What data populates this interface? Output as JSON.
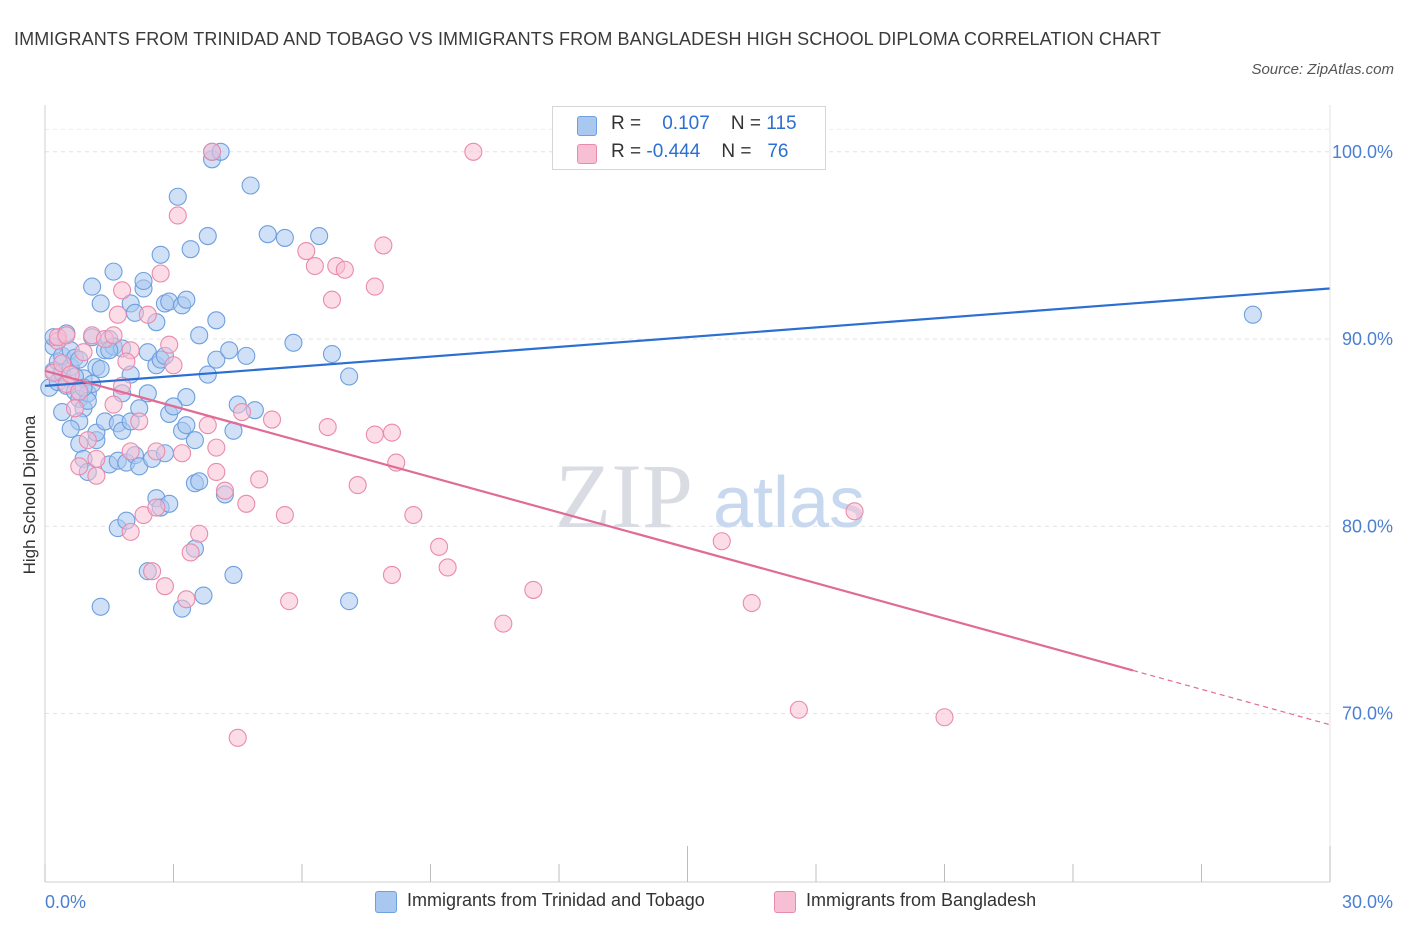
{
  "title": "IMMIGRANTS FROM TRINIDAD AND TOBAGO VS IMMIGRANTS FROM BANGLADESH HIGH SCHOOL DIPLOMA CORRELATION CHART",
  "source": "Source: ZipAtlas.com",
  "watermark": {
    "zip": "ZIP",
    "atlas": "atlas"
  },
  "stats_legend": {
    "rows": [
      {
        "r_label": "R =",
        "r_value": "0.107",
        "n_label": "N =",
        "n_value": "115",
        "color": "#a9c8f0",
        "border": "#6e9fdf"
      },
      {
        "r_label": "R =",
        "r_value": "-0.444",
        "n_label": "N =",
        "n_value": "76",
        "color": "#f7bfd3",
        "border": "#e98bab"
      }
    ]
  },
  "chart_data": {
    "type": "scatter",
    "title": "IMMIGRANTS FROM TRINIDAD AND TOBAGO VS IMMIGRANTS FROM BANGLADESH HIGH SCHOOL DIPLOMA CORRELATION CHART",
    "xlabel": "",
    "ylabel": "High School Diploma",
    "xlim": [
      0,
      30
    ],
    "ylim": [
      61,
      102.5
    ],
    "x_tick_labels": [
      "0.0%",
      "30.0%"
    ],
    "y_ticks": [
      100,
      90,
      80,
      70
    ],
    "y_tick_labels": [
      "100.0%",
      "90.0%",
      "80.0%",
      "70.0%"
    ],
    "grid": true,
    "legend_position": "bottom",
    "series": [
      {
        "name": "Immigrants from Trinidad and Tobago",
        "color": "#6e9fdf",
        "fill": "#a9c8f0",
        "trend_color": "#2b6fd3",
        "trend": {
          "x0": 0,
          "y0": 87.5,
          "x1": 29.99,
          "y1": 92.7
        },
        "points": [
          [
            0.1,
            87.4
          ],
          [
            0.2,
            88.3
          ],
          [
            0.2,
            89.6
          ],
          [
            0.3,
            88.8
          ],
          [
            0.3,
            87.7
          ],
          [
            0.4,
            89.1
          ],
          [
            0.4,
            88.2
          ],
          [
            0.5,
            87.5
          ],
          [
            0.6,
            89.4
          ],
          [
            0.6,
            88.5
          ],
          [
            0.7,
            87.2
          ],
          [
            0.7,
            89.0
          ],
          [
            0.8,
            86.8
          ],
          [
            0.8,
            88.9
          ],
          [
            0.9,
            86.3
          ],
          [
            0.9,
            87.9
          ],
          [
            0.8,
            85.6
          ],
          [
            0.8,
            84.4
          ],
          [
            0.9,
            83.6
          ],
          [
            1.0,
            87.1
          ],
          [
            1.0,
            86.7
          ],
          [
            1.1,
            92.8
          ],
          [
            1.1,
            90.1
          ],
          [
            1.1,
            87.6
          ],
          [
            1.2,
            84.6
          ],
          [
            1.2,
            85.0
          ],
          [
            1.2,
            88.5
          ],
          [
            1.3,
            91.9
          ],
          [
            1.3,
            88.4
          ],
          [
            1.4,
            89.4
          ],
          [
            1.4,
            85.6
          ],
          [
            1.5,
            83.3
          ],
          [
            1.5,
            90.0
          ],
          [
            1.6,
            93.6
          ],
          [
            1.6,
            89.6
          ],
          [
            1.7,
            85.5
          ],
          [
            1.7,
            83.5
          ],
          [
            1.7,
            79.9
          ],
          [
            1.8,
            87.1
          ],
          [
            1.8,
            85.1
          ],
          [
            1.8,
            89.5
          ],
          [
            1.9,
            80.3
          ],
          [
            1.9,
            83.4
          ],
          [
            2.0,
            91.9
          ],
          [
            2.0,
            85.6
          ],
          [
            2.1,
            91.4
          ],
          [
            2.1,
            83.8
          ],
          [
            2.2,
            83.2
          ],
          [
            2.3,
            92.7
          ],
          [
            2.3,
            93.1
          ],
          [
            2.4,
            89.3
          ],
          [
            2.4,
            87.1
          ],
          [
            2.4,
            77.6
          ],
          [
            2.5,
            83.6
          ],
          [
            2.6,
            90.9
          ],
          [
            2.6,
            88.6
          ],
          [
            2.6,
            81.5
          ],
          [
            2.7,
            94.5
          ],
          [
            2.7,
            88.9
          ],
          [
            2.7,
            81.0
          ],
          [
            2.8,
            91.9
          ],
          [
            2.8,
            89.1
          ],
          [
            2.8,
            83.9
          ],
          [
            2.9,
            86.0
          ],
          [
            2.9,
            92.0
          ],
          [
            3.1,
            97.6
          ],
          [
            3.2,
            85.1
          ],
          [
            3.2,
            75.6
          ],
          [
            3.2,
            91.8
          ],
          [
            3.3,
            92.1
          ],
          [
            3.3,
            85.4
          ],
          [
            3.3,
            86.9
          ],
          [
            3.4,
            94.8
          ],
          [
            3.5,
            84.6
          ],
          [
            3.5,
            78.8
          ],
          [
            3.5,
            82.3
          ],
          [
            3.6,
            90.2
          ],
          [
            3.7,
            76.3
          ],
          [
            3.8,
            88.1
          ],
          [
            3.8,
            95.5
          ],
          [
            3.9,
            99.6
          ],
          [
            3.9,
            100.0
          ],
          [
            4.0,
            88.9
          ],
          [
            4.0,
            91.0
          ],
          [
            4.1,
            100.0
          ],
          [
            4.2,
            81.7
          ],
          [
            4.3,
            89.4
          ],
          [
            4.4,
            85.1
          ],
          [
            4.4,
            77.4
          ],
          [
            4.5,
            86.5
          ],
          [
            4.7,
            89.1
          ],
          [
            4.8,
            98.2
          ],
          [
            4.9,
            86.2
          ],
          [
            5.2,
            95.6
          ],
          [
            5.6,
            95.4
          ],
          [
            5.8,
            89.8
          ],
          [
            6.4,
            95.5
          ],
          [
            6.7,
            89.2
          ],
          [
            7.1,
            88.0
          ],
          [
            7.1,
            76.0
          ],
          [
            0.2,
            90.1
          ],
          [
            0.4,
            86.1
          ],
          [
            0.5,
            90.3
          ],
          [
            0.7,
            88.0
          ],
          [
            0.6,
            85.2
          ],
          [
            1.3,
            75.7
          ],
          [
            2.0,
            88.1
          ],
          [
            2.2,
            86.3
          ],
          [
            1.0,
            82.9
          ],
          [
            3.0,
            86.4
          ],
          [
            3.6,
            82.4
          ],
          [
            2.9,
            81.2
          ],
          [
            1.5,
            89.4
          ],
          [
            0.9,
            87.4
          ],
          [
            28.2,
            91.3
          ]
        ]
      },
      {
        "name": "Immigrants from Bangladesh",
        "color": "#e98bab",
        "fill": "#f7bfd3",
        "trend_color": "#e06b96",
        "trend": {
          "x0": 0,
          "y0": 88.3,
          "x1": 25.4,
          "y1": 72.3,
          "dash_to_x": 30,
          "dash_to_y": 69.4
        },
        "points": [
          [
            0.2,
            88.2
          ],
          [
            0.3,
            89.9
          ],
          [
            0.3,
            90.1
          ],
          [
            0.4,
            88.7
          ],
          [
            0.5,
            90.2
          ],
          [
            0.5,
            87.6
          ],
          [
            0.6,
            88.1
          ],
          [
            0.7,
            86.3
          ],
          [
            0.8,
            87.2
          ],
          [
            0.9,
            89.3
          ],
          [
            1.1,
            90.2
          ],
          [
            1.2,
            82.7
          ],
          [
            1.2,
            83.6
          ],
          [
            1.4,
            90.0
          ],
          [
            1.6,
            90.2
          ],
          [
            1.6,
            86.5
          ],
          [
            1.7,
            91.3
          ],
          [
            1.8,
            92.6
          ],
          [
            1.8,
            87.5
          ],
          [
            2.0,
            84.0
          ],
          [
            2.0,
            89.4
          ],
          [
            2.0,
            79.7
          ],
          [
            2.2,
            85.6
          ],
          [
            2.3,
            80.6
          ],
          [
            2.4,
            91.3
          ],
          [
            2.5,
            77.6
          ],
          [
            2.6,
            81.0
          ],
          [
            2.6,
            84.0
          ],
          [
            2.7,
            93.5
          ],
          [
            2.8,
            76.8
          ],
          [
            2.9,
            89.7
          ],
          [
            3.0,
            88.6
          ],
          [
            3.1,
            96.6
          ],
          [
            3.2,
            83.9
          ],
          [
            3.3,
            76.1
          ],
          [
            3.4,
            78.6
          ],
          [
            3.6,
            79.6
          ],
          [
            3.8,
            85.4
          ],
          [
            3.9,
            100.0
          ],
          [
            4.0,
            82.9
          ],
          [
            4.0,
            84.2
          ],
          [
            4.2,
            81.9
          ],
          [
            4.5,
            68.7
          ],
          [
            4.6,
            86.1
          ],
          [
            4.7,
            81.2
          ],
          [
            5.0,
            82.5
          ],
          [
            5.3,
            85.7
          ],
          [
            5.6,
            80.6
          ],
          [
            5.7,
            76.0
          ],
          [
            6.1,
            94.7
          ],
          [
            6.3,
            93.9
          ],
          [
            6.6,
            85.3
          ],
          [
            6.7,
            92.1
          ],
          [
            6.8,
            93.9
          ],
          [
            7.0,
            93.7
          ],
          [
            7.3,
            82.2
          ],
          [
            7.7,
            92.8
          ],
          [
            7.7,
            84.9
          ],
          [
            7.9,
            95.0
          ],
          [
            8.1,
            77.4
          ],
          [
            8.1,
            85.0
          ],
          [
            8.2,
            83.4
          ],
          [
            8.6,
            80.6
          ],
          [
            9.2,
            78.9
          ],
          [
            9.4,
            77.8
          ],
          [
            10.0,
            100.0
          ],
          [
            10.7,
            74.8
          ],
          [
            11.4,
            76.6
          ],
          [
            15.8,
            79.2
          ],
          [
            16.5,
            75.9
          ],
          [
            17.6,
            70.2
          ],
          [
            18.9,
            80.8
          ],
          [
            21.0,
            69.8
          ],
          [
            1.0,
            84.6
          ],
          [
            0.8,
            83.2
          ],
          [
            1.9,
            88.8
          ]
        ]
      }
    ]
  }
}
